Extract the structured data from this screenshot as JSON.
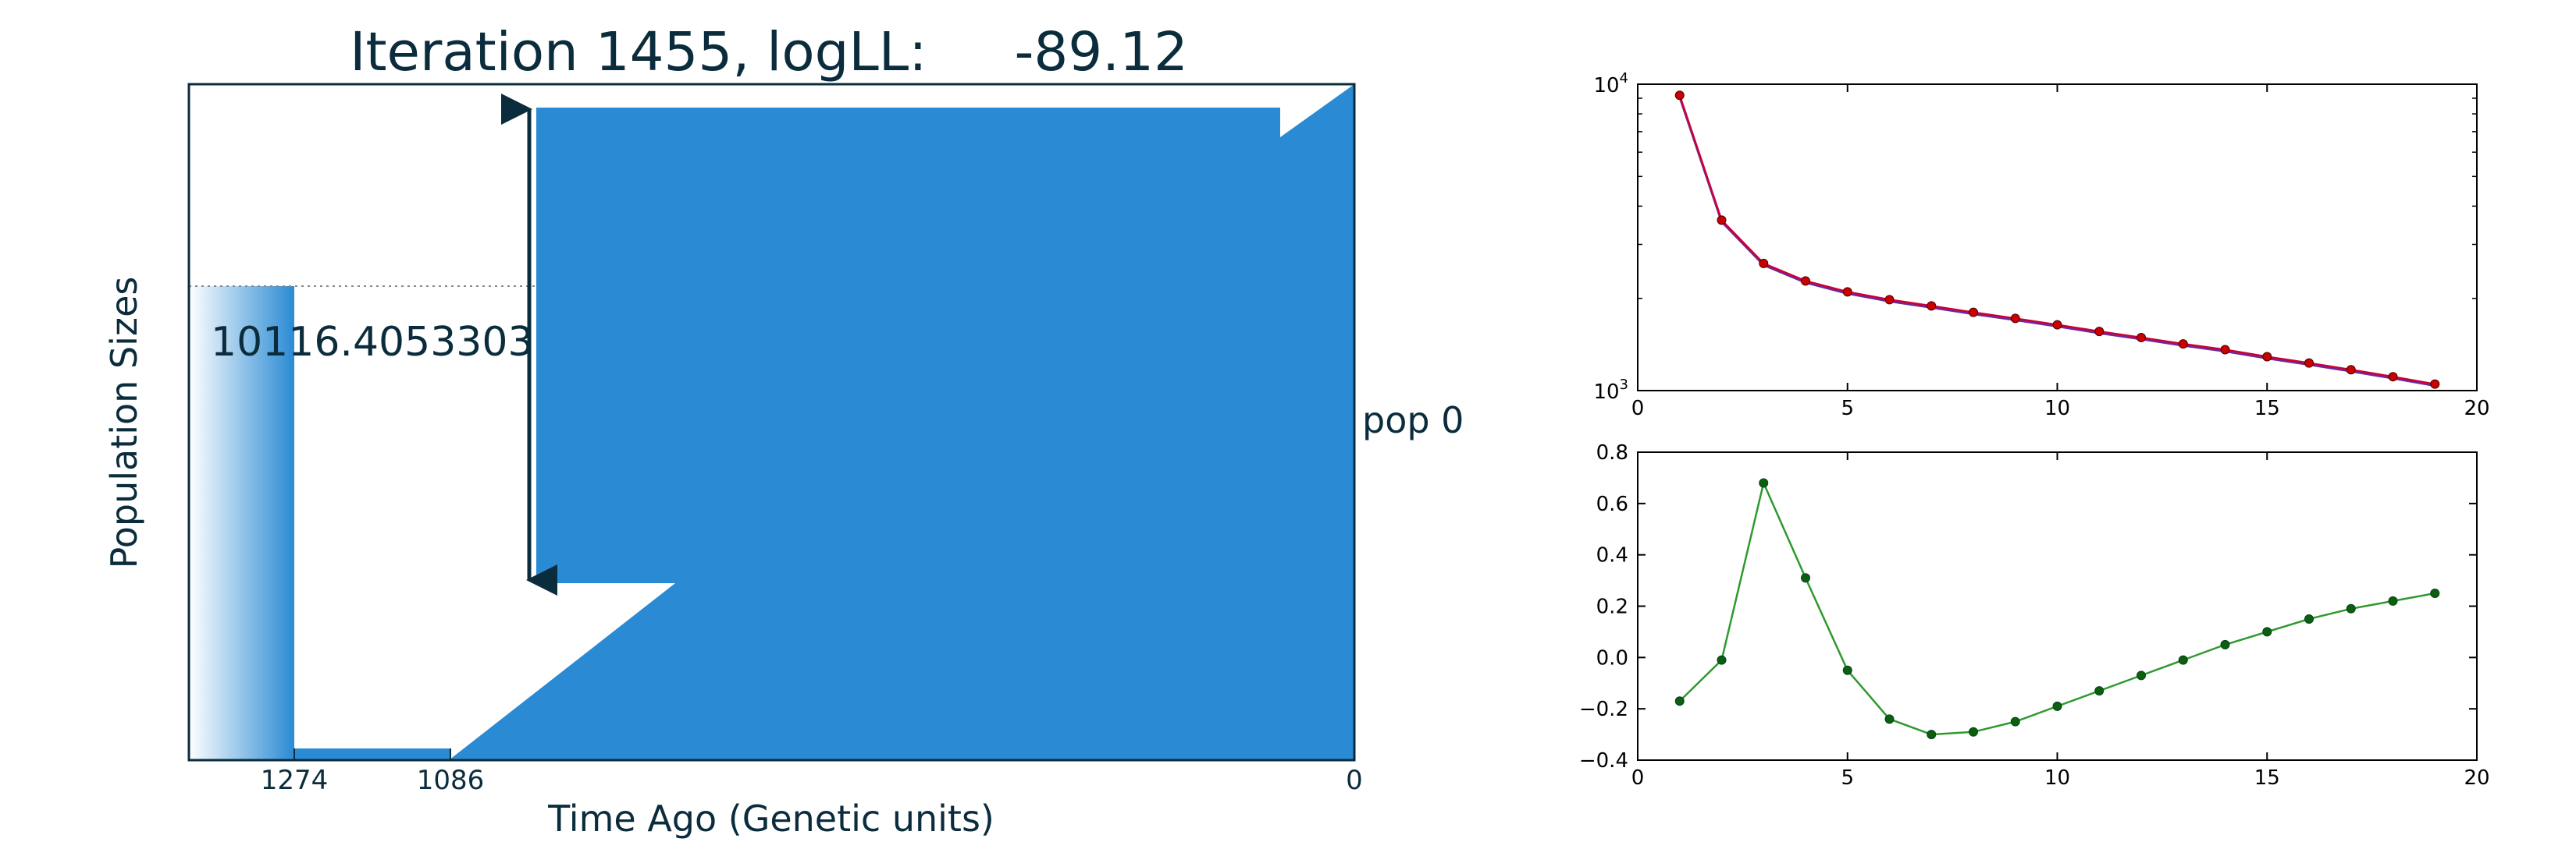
{
  "demography": {
    "title_prefix": "Iteration 1455, logLL:",
    "title_value": "-89.12",
    "xlabel": "Time Ago (Genetic units)",
    "ylabel": "Population Sizes",
    "size_label": "10116.4053303",
    "pop_label": "pop 0",
    "x_ticks": [
      "1274",
      "1086",
      "0"
    ],
    "fill_color": "#2a8bd4"
  },
  "chart_data": [
    {
      "type": "line",
      "y_scale": "log",
      "xlim": [
        0,
        20
      ],
      "ylim": [
        1000,
        10000
      ],
      "x_ticks": [
        "0",
        "5",
        "10",
        "15",
        "20"
      ],
      "y_tick_base": "10",
      "y_tick_exponents": [
        "4",
        "3"
      ],
      "grid": false,
      "series": [
        {
          "color": "#cc0033",
          "marker_color": "#cc0000",
          "x": [
            1,
            2,
            3,
            4,
            5,
            6,
            7,
            8,
            9,
            10,
            11,
            12,
            13,
            14,
            15,
            16,
            17,
            18,
            19
          ],
          "y": [
            9200,
            3600,
            2600,
            2280,
            2100,
            1980,
            1890,
            1800,
            1720,
            1640,
            1560,
            1490,
            1420,
            1360,
            1290,
            1230,
            1170,
            1110,
            1050
          ]
        }
      ]
    },
    {
      "type": "line",
      "xlim": [
        0,
        20
      ],
      "ylim": [
        -0.4,
        0.8
      ],
      "x_ticks": [
        "0",
        "5",
        "10",
        "15",
        "20"
      ],
      "y_ticks": [
        "0.8",
        "0.6",
        "0.4",
        "0.2",
        "0.0",
        "−0.2",
        "−0.4"
      ],
      "grid": false,
      "series": [
        {
          "color": "#2e9a2e",
          "marker_color": "#0d5e0d",
          "x": [
            1,
            2,
            3,
            4,
            5,
            6,
            7,
            8,
            9,
            10,
            11,
            12,
            13,
            14,
            15,
            16,
            17,
            18,
            19
          ],
          "y": [
            -0.17,
            -0.01,
            0.68,
            0.31,
            -0.05,
            -0.24,
            -0.3,
            -0.29,
            -0.25,
            -0.19,
            -0.13,
            -0.07,
            -0.01,
            0.05,
            0.1,
            0.15,
            0.19,
            0.22,
            0.25
          ]
        }
      ]
    }
  ]
}
